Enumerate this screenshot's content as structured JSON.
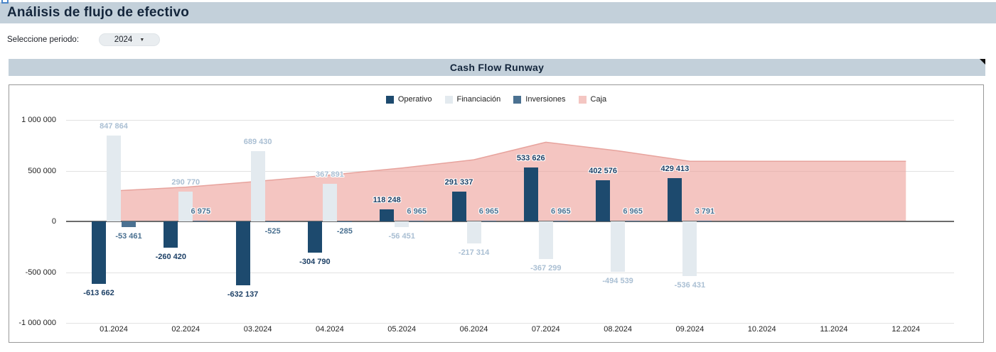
{
  "page": {
    "title": "Análisis de flujo de efectivo",
    "period_label": "Seleccione periodo:",
    "period_value": "2024",
    "period_caret": "▼"
  },
  "chart": {
    "title": "Cash Flow Runway"
  },
  "colors": {
    "header_bar": "#c3d0da",
    "operativo": "#1d4a6e",
    "financiacion": "#e3eaef",
    "inversiones": "#4b7191",
    "caja_fill": "#f4c6c2",
    "caja_line": "#e7a39d"
  },
  "chart_data": {
    "type": "bar",
    "subtype": "grouped-bars-with-area",
    "title": "Cash Flow Runway",
    "xlabel": "",
    "ylabel": "",
    "ylim": [
      -1000000,
      1000000
    ],
    "grid": true,
    "legend_position": "top-center",
    "categories": [
      "01.2024",
      "02.2024",
      "03.2024",
      "04.2024",
      "05.2024",
      "06.2024",
      "07.2024",
      "08.2024",
      "09.2024",
      "10.2024",
      "11.2024",
      "12.2024"
    ],
    "yticks": [
      {
        "value": 1000000,
        "label": "1 000 000"
      },
      {
        "value": 500000,
        "label": "500 000"
      },
      {
        "value": 0,
        "label": "0"
      },
      {
        "value": -500000,
        "label": "-500 000"
      },
      {
        "value": -1000000,
        "label": "-1 000 000"
      }
    ],
    "series": [
      {
        "name": "Operativo",
        "type": "bar",
        "color": "#1d4a6e",
        "label_color": "#1d4066",
        "values": [
          -613662,
          -260420,
          -632137,
          -304790,
          118248,
          291337,
          533626,
          402576,
          429413,
          null,
          null,
          null
        ],
        "labels": [
          "-613 662",
          "-260 420",
          "-632 137",
          "-304 790",
          "118 248",
          "291 337",
          "533 626",
          "402 576",
          "429 413",
          null,
          null,
          null
        ]
      },
      {
        "name": "Financiación",
        "type": "bar",
        "color": "#e3eaef",
        "label_color": "#aabfd3",
        "values": [
          847864,
          290770,
          689430,
          367891,
          -56451,
          -217314,
          -367299,
          -494539,
          -536431,
          null,
          null,
          null
        ],
        "labels": [
          "847 864",
          "290 770",
          "689 430",
          "367 891",
          "-56 451",
          "-217 314",
          "-367 299",
          "-494 539",
          "-536 431",
          null,
          null,
          null
        ]
      },
      {
        "name": "Inversiones",
        "type": "bar",
        "color": "#4b7191",
        "label_color": "#4b7191",
        "values": [
          -53461,
          6975,
          -525,
          -285,
          6965,
          6965,
          6965,
          6965,
          3791,
          null,
          null,
          null
        ],
        "labels": [
          "-53 461",
          "6 975",
          "-525",
          "-285",
          "6 965",
          "6 965",
          "6 965",
          "6 965",
          "3 791",
          null,
          null,
          null
        ]
      },
      {
        "name": "Caja",
        "type": "area",
        "color": "#f4c6c2",
        "line_color": "#e7a39d",
        "values": [
          300741,
          338066,
          394834,
          457650,
          526412,
          607400,
          780692,
          695694,
          592467,
          592467,
          592467,
          592467
        ],
        "labels": null
      }
    ]
  }
}
